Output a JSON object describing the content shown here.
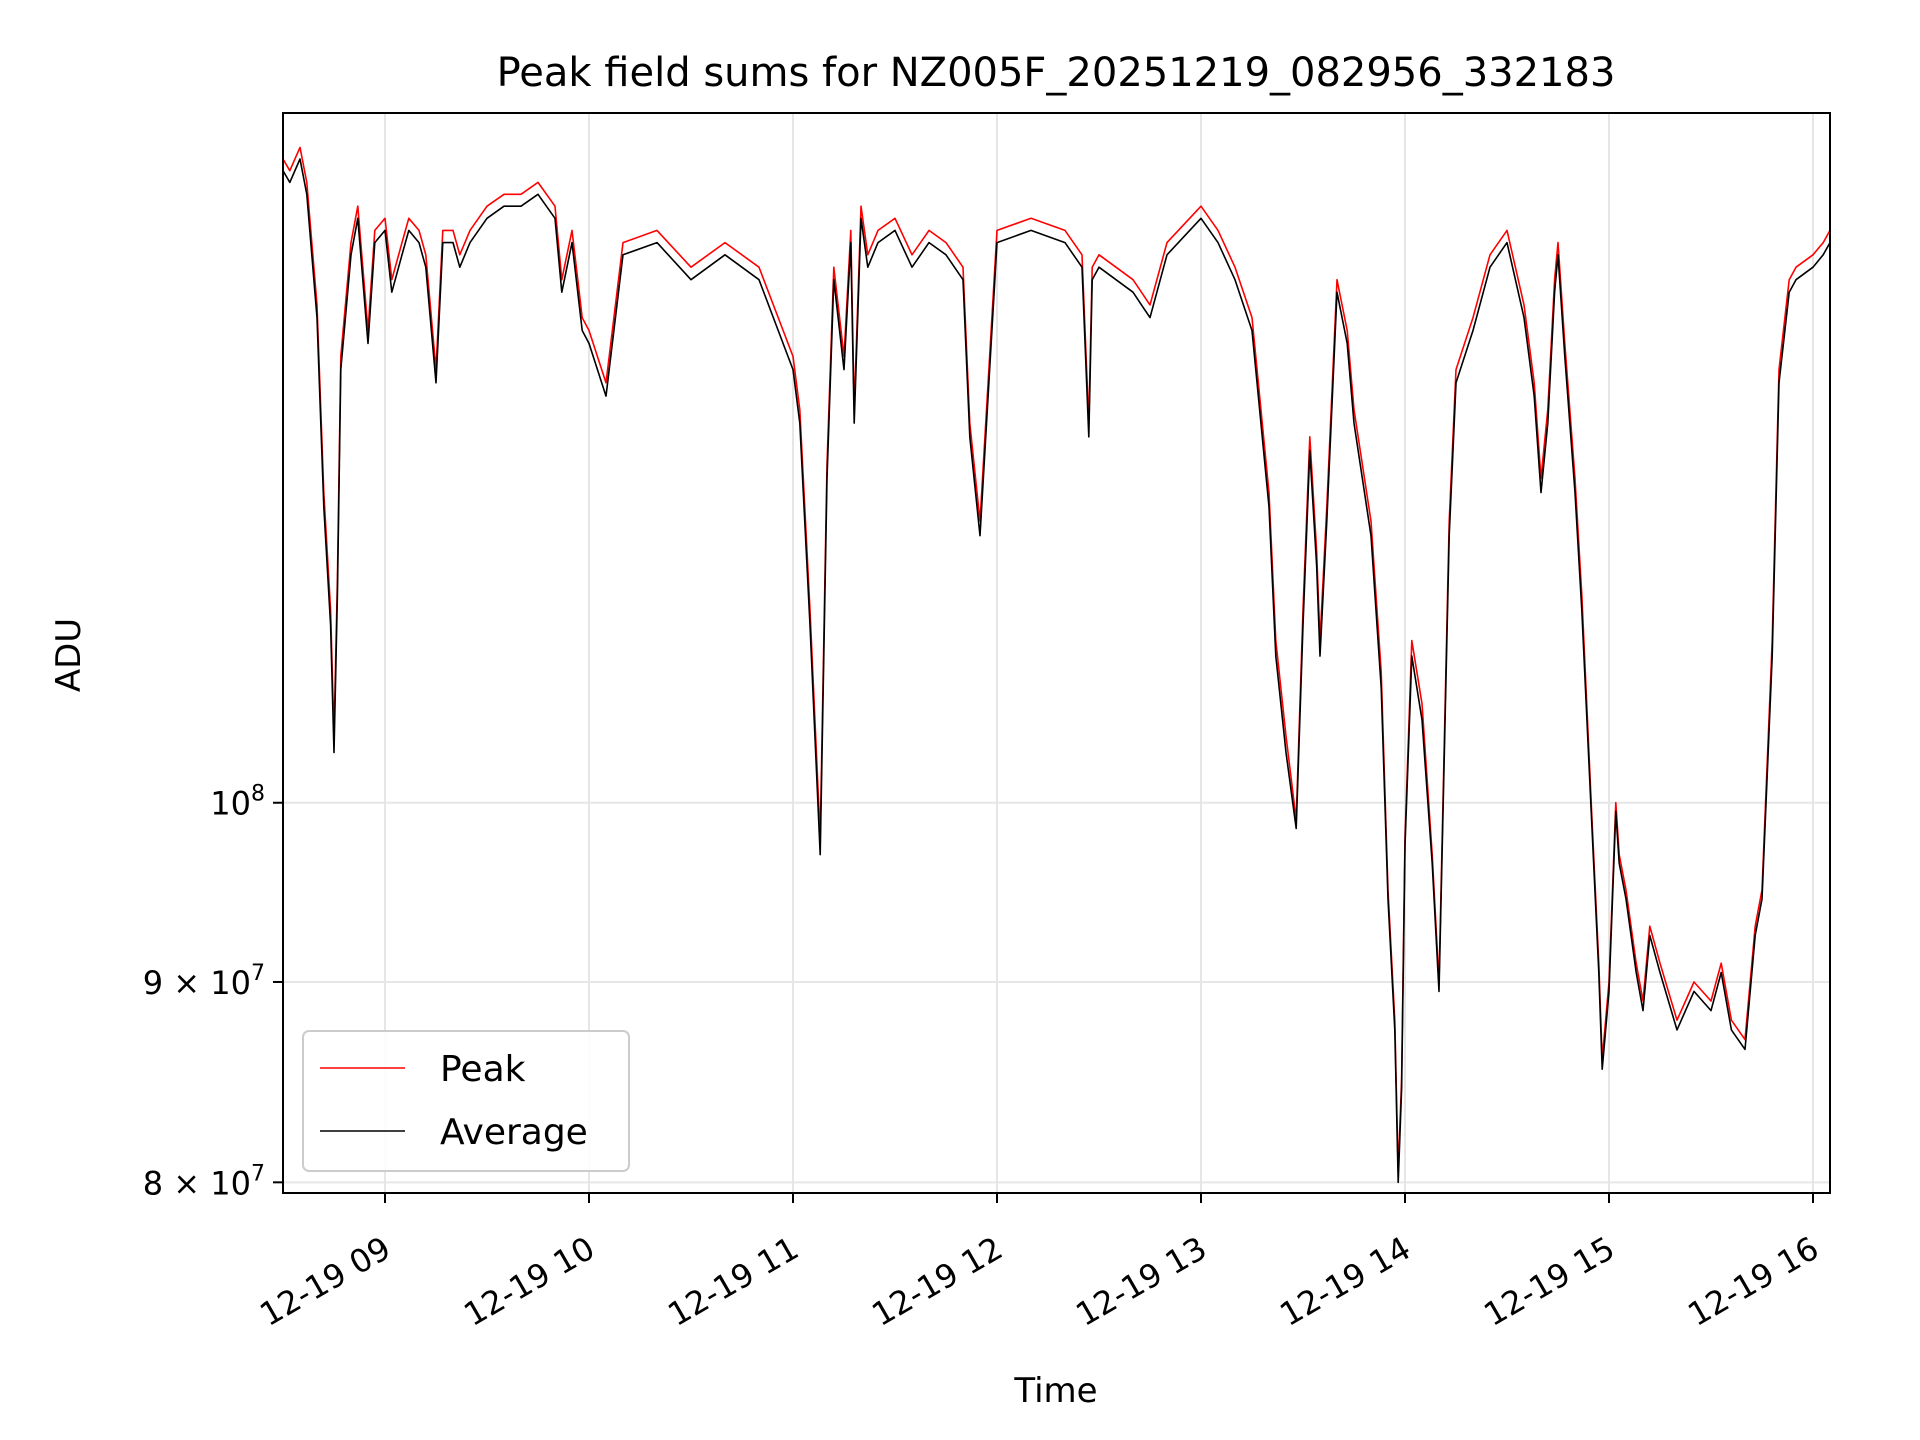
{
  "chart_data": {
    "type": "line",
    "title": "Peak field sums for NZ005F_20251219_082956_332183",
    "xlabel": "Time",
    "ylabel": "ADU",
    "x_range": [
      "2025-12-19 08:30",
      "2025-12-19 16:05"
    ],
    "ylim": [
      79500000,
      150000000
    ],
    "y_scale": "log",
    "grid": true,
    "legend_position": "lower left",
    "x_ticks": [
      "12-19 09",
      "12-19 10",
      "12-19 11",
      "12-19 12",
      "12-19 13",
      "12-19 14",
      "12-19 15",
      "12-19 16"
    ],
    "x_tick_times": [
      "2025-12-19 09:00",
      "2025-12-19 10:00",
      "2025-12-19 11:00",
      "2025-12-19 12:00",
      "2025-12-19 13:00",
      "2025-12-19 14:00",
      "2025-12-19 15:00",
      "2025-12-19 16:00"
    ],
    "y_ticks": [
      {
        "value": 80000000,
        "mantissa": "8",
        "base": "10",
        "exp": "7"
      },
      {
        "value": 90000000,
        "mantissa": "9",
        "base": "10",
        "exp": "7"
      },
      {
        "value": 100000000,
        "mantissa": "",
        "base": "10",
        "exp": "8"
      }
    ],
    "series": [
      {
        "name": "Peak",
        "color": "#ff0000"
      },
      {
        "name": "Average",
        "color": "#000000"
      }
    ],
    "x": [
      "08:30",
      "08:32",
      "08:35",
      "08:37",
      "08:40",
      "08:42",
      "08:44",
      "08:45",
      "08:46",
      "08:47",
      "08:50",
      "08:52",
      "08:55",
      "08:57",
      "09:00",
      "09:02",
      "09:05",
      "09:07",
      "09:10",
      "09:12",
      "09:15",
      "09:17",
      "09:20",
      "09:22",
      "09:25",
      "09:30",
      "09:35",
      "09:40",
      "09:45",
      "09:50",
      "09:52",
      "09:55",
      "09:58",
      "10:00",
      "10:05",
      "10:10",
      "10:20",
      "10:30",
      "10:40",
      "10:50",
      "11:00",
      "11:02",
      "11:05",
      "11:08",
      "11:10",
      "11:12",
      "11:15",
      "11:17",
      "11:18",
      "11:20",
      "11:22",
      "11:25",
      "11:30",
      "11:35",
      "11:40",
      "11:45",
      "11:50",
      "11:52",
      "11:55",
      "12:00",
      "12:10",
      "12:20",
      "12:25",
      "12:27",
      "12:28",
      "12:30",
      "12:35",
      "12:40",
      "12:45",
      "12:50",
      "13:00",
      "13:05",
      "13:10",
      "13:15",
      "13:20",
      "13:22",
      "13:25",
      "13:28",
      "13:30",
      "13:32",
      "13:34",
      "13:35",
      "13:37",
      "13:40",
      "13:43",
      "13:45",
      "13:50",
      "13:53",
      "13:55",
      "13:57",
      "13:58",
      "13:59",
      "14:00",
      "14:02",
      "14:05",
      "14:08",
      "14:10",
      "14:13",
      "14:15",
      "14:20",
      "14:25",
      "14:30",
      "14:35",
      "14:38",
      "14:40",
      "14:42",
      "14:44",
      "14:45",
      "14:47",
      "14:50",
      "14:52",
      "14:55",
      "14:57",
      "14:58",
      "15:00",
      "15:02",
      "15:03",
      "15:05",
      "15:08",
      "15:10",
      "15:12",
      "15:15",
      "15:20",
      "15:25",
      "15:30",
      "15:33",
      "15:36",
      "15:40",
      "15:43",
      "15:45",
      "15:48",
      "15:50",
      "15:53",
      "15:55",
      "16:00",
      "16:03",
      "16:05"
    ],
    "peak": [
      146000000,
      145000000,
      147000000,
      144000000,
      134000000,
      120000000,
      112000000,
      104000000,
      114000000,
      130000000,
      139000000,
      142000000,
      132000000,
      140000000,
      141000000,
      136000000,
      139000000,
      141000000,
      140000000,
      138000000,
      129000000,
      140000000,
      140000000,
      138000000,
      140000000,
      142000000,
      143000000,
      143000000,
      144000000,
      142000000,
      136000000,
      140000000,
      133000000,
      132000000,
      128000000,
      139000000,
      140000000,
      137000000,
      139000000,
      137000000,
      130000000,
      126000000,
      112000000,
      98000000,
      122000000,
      137000000,
      130000000,
      140000000,
      126000000,
      142000000,
      138000000,
      140000000,
      141000000,
      138000000,
      140000000,
      139000000,
      137000000,
      125000000,
      118000000,
      140000000,
      141000000,
      140000000,
      138000000,
      125000000,
      137000000,
      138000000,
      137000000,
      136000000,
      134000000,
      139000000,
      142000000,
      140000000,
      137000000,
      133000000,
      120000000,
      110000000,
      104000000,
      99000000,
      112000000,
      124000000,
      116000000,
      110000000,
      119000000,
      136000000,
      132000000,
      126000000,
      118000000,
      108000000,
      95000000,
      88000000,
      80500000,
      85000000,
      98000000,
      110000000,
      106000000,
      97000000,
      90000000,
      118000000,
      129000000,
      133000000,
      138000000,
      140000000,
      134000000,
      128000000,
      121000000,
      126000000,
      136000000,
      139000000,
      131000000,
      121000000,
      113000000,
      99000000,
      91000000,
      86000000,
      90000000,
      100000000,
      97000000,
      95000000,
      91000000,
      89000000,
      93000000,
      91000000,
      88000000,
      90000000,
      89000000,
      91000000,
      88000000,
      87000000,
      93000000,
      95000000,
      110000000,
      129000000,
      136000000,
      137000000,
      138000000,
      139000000,
      140000000
    ],
    "average": [
      145000000,
      144000000,
      146000000,
      143000000,
      133000000,
      119000000,
      111000000,
      103000000,
      113000000,
      129000000,
      138000000,
      141000000,
      131000000,
      139000000,
      140000000,
      135000000,
      138000000,
      140000000,
      139000000,
      137000000,
      128000000,
      139000000,
      139000000,
      137000000,
      139000000,
      141000000,
      142000000,
      142000000,
      143000000,
      141000000,
      135000000,
      139000000,
      132000000,
      131000000,
      127000000,
      138000000,
      139000000,
      136000000,
      138000000,
      136000000,
      129000000,
      125000000,
      111000000,
      97000000,
      121000000,
      136000000,
      129000000,
      139000000,
      125000000,
      141000000,
      137000000,
      139000000,
      140000000,
      137000000,
      139000000,
      138000000,
      136000000,
      124000000,
      117000000,
      139000000,
      140000000,
      139000000,
      137000000,
      124000000,
      136000000,
      137000000,
      136000000,
      135000000,
      133000000,
      138000000,
      141000000,
      139000000,
      136000000,
      132000000,
      119000000,
      109000000,
      103000000,
      98500000,
      111000000,
      123000000,
      115000000,
      109000000,
      118000000,
      135000000,
      131000000,
      125000000,
      117000000,
      107000000,
      94500000,
      87500000,
      80000000,
      84500000,
      97500000,
      109000000,
      105000000,
      96500000,
      89500000,
      117000000,
      128000000,
      132000000,
      137000000,
      139000000,
      133000000,
      127000000,
      120000000,
      125000000,
      135000000,
      138000000,
      130000000,
      120000000,
      112000000,
      98500000,
      90500000,
      85500000,
      89500000,
      99500000,
      96500000,
      94500000,
      90500000,
      88500000,
      92500000,
      90500000,
      87500000,
      89500000,
      88500000,
      90500000,
      87500000,
      86500000,
      92500000,
      94500000,
      109000000,
      128000000,
      135000000,
      136000000,
      137000000,
      138000000,
      139000000
    ]
  }
}
